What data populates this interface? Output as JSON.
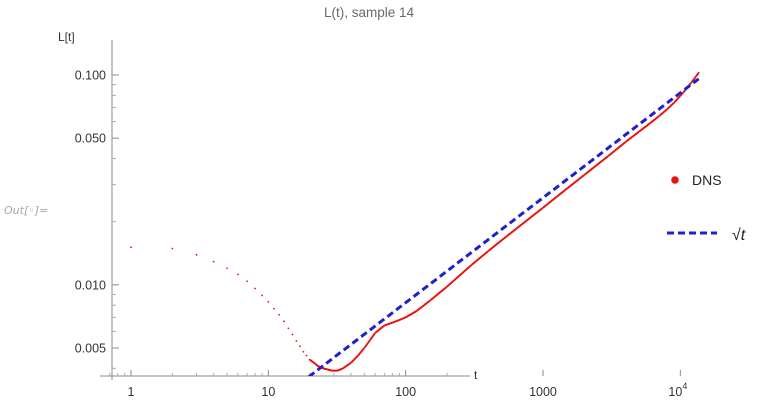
{
  "notebook": {
    "out_label": "Out[◦]="
  },
  "chart_data": {
    "type": "scatter",
    "title": "L(t), sample 14",
    "xlabel": "t",
    "ylabel": "L[t]",
    "x_scale": "log",
    "y_scale": "log",
    "xlim": [
      0.7,
      20000
    ],
    "ylim": [
      0.0034,
      0.13
    ],
    "x_ticks": [
      {
        "value": 1,
        "label": "1"
      },
      {
        "value": 10,
        "label": "10"
      },
      {
        "value": 100,
        "label": "100"
      },
      {
        "value": 1000,
        "label": "1000"
      },
      {
        "value": 10000,
        "label": "10",
        "sup": "4"
      }
    ],
    "y_ticks": [
      {
        "value": 0.005,
        "label": "0.005"
      },
      {
        "value": 0.01,
        "label": "0.010"
      },
      {
        "value": 0.05,
        "label": "0.050"
      },
      {
        "value": 0.1,
        "label": "0.100"
      }
    ],
    "grid": false,
    "legend_position": "right",
    "series": [
      {
        "name": "DNS",
        "kind": "points",
        "color": "#e8140f",
        "points": [
          [
            1,
            0.0151
          ],
          [
            2,
            0.0149
          ],
          [
            3,
            0.0139
          ],
          [
            4,
            0.0129
          ],
          [
            5,
            0.012
          ],
          [
            6,
            0.0112
          ],
          [
            7,
            0.0104
          ],
          [
            8,
            0.0096
          ],
          [
            9,
            0.0089
          ],
          [
            10,
            0.0083
          ],
          [
            11,
            0.0077
          ],
          [
            12,
            0.0072
          ],
          [
            13,
            0.0067
          ],
          [
            14,
            0.0062
          ],
          [
            15,
            0.0058
          ],
          [
            16,
            0.0054
          ],
          [
            17,
            0.0051
          ],
          [
            18,
            0.0048
          ],
          [
            19,
            0.0046
          ],
          [
            20,
            0.0044
          ],
          [
            21,
            0.0043
          ],
          [
            22,
            0.0042
          ],
          [
            23,
            0.0041
          ],
          [
            24,
            0.00405
          ],
          [
            25,
            0.004
          ],
          [
            27,
            0.00395
          ],
          [
            29,
            0.0039
          ],
          [
            32,
            0.0039
          ],
          [
            35,
            0.004
          ],
          [
            40,
            0.00425
          ],
          [
            45,
            0.0046
          ],
          [
            50,
            0.005
          ],
          [
            55,
            0.00545
          ],
          [
            60,
            0.0059
          ],
          [
            70,
            0.0064
          ],
          [
            80,
            0.0066
          ],
          [
            90,
            0.0068
          ],
          [
            100,
            0.007
          ],
          [
            120,
            0.0075
          ],
          [
            150,
            0.0084
          ],
          [
            200,
            0.0098
          ],
          [
            300,
            0.0124
          ],
          [
            400,
            0.0145
          ],
          [
            500,
            0.0163
          ],
          [
            700,
            0.0194
          ],
          [
            1000,
            0.0233
          ],
          [
            1500,
            0.0288
          ],
          [
            2000,
            0.0334
          ],
          [
            3000,
            0.0412
          ],
          [
            4000,
            0.048
          ],
          [
            5000,
            0.0537
          ],
          [
            6000,
            0.0588
          ],
          [
            7000,
            0.0637
          ],
          [
            8000,
            0.0686
          ],
          [
            9000,
            0.0738
          ],
          [
            10000,
            0.0795
          ],
          [
            11000,
            0.0855
          ],
          [
            12000,
            0.0918
          ],
          [
            13000,
            0.0985
          ],
          [
            13600,
            0.1025
          ]
        ]
      },
      {
        "name": "√t",
        "kind": "line",
        "style": "dashed",
        "color": "#1f1fcf",
        "coefficient": 0.000822,
        "x_range": [
          17,
          13600
        ]
      }
    ]
  }
}
